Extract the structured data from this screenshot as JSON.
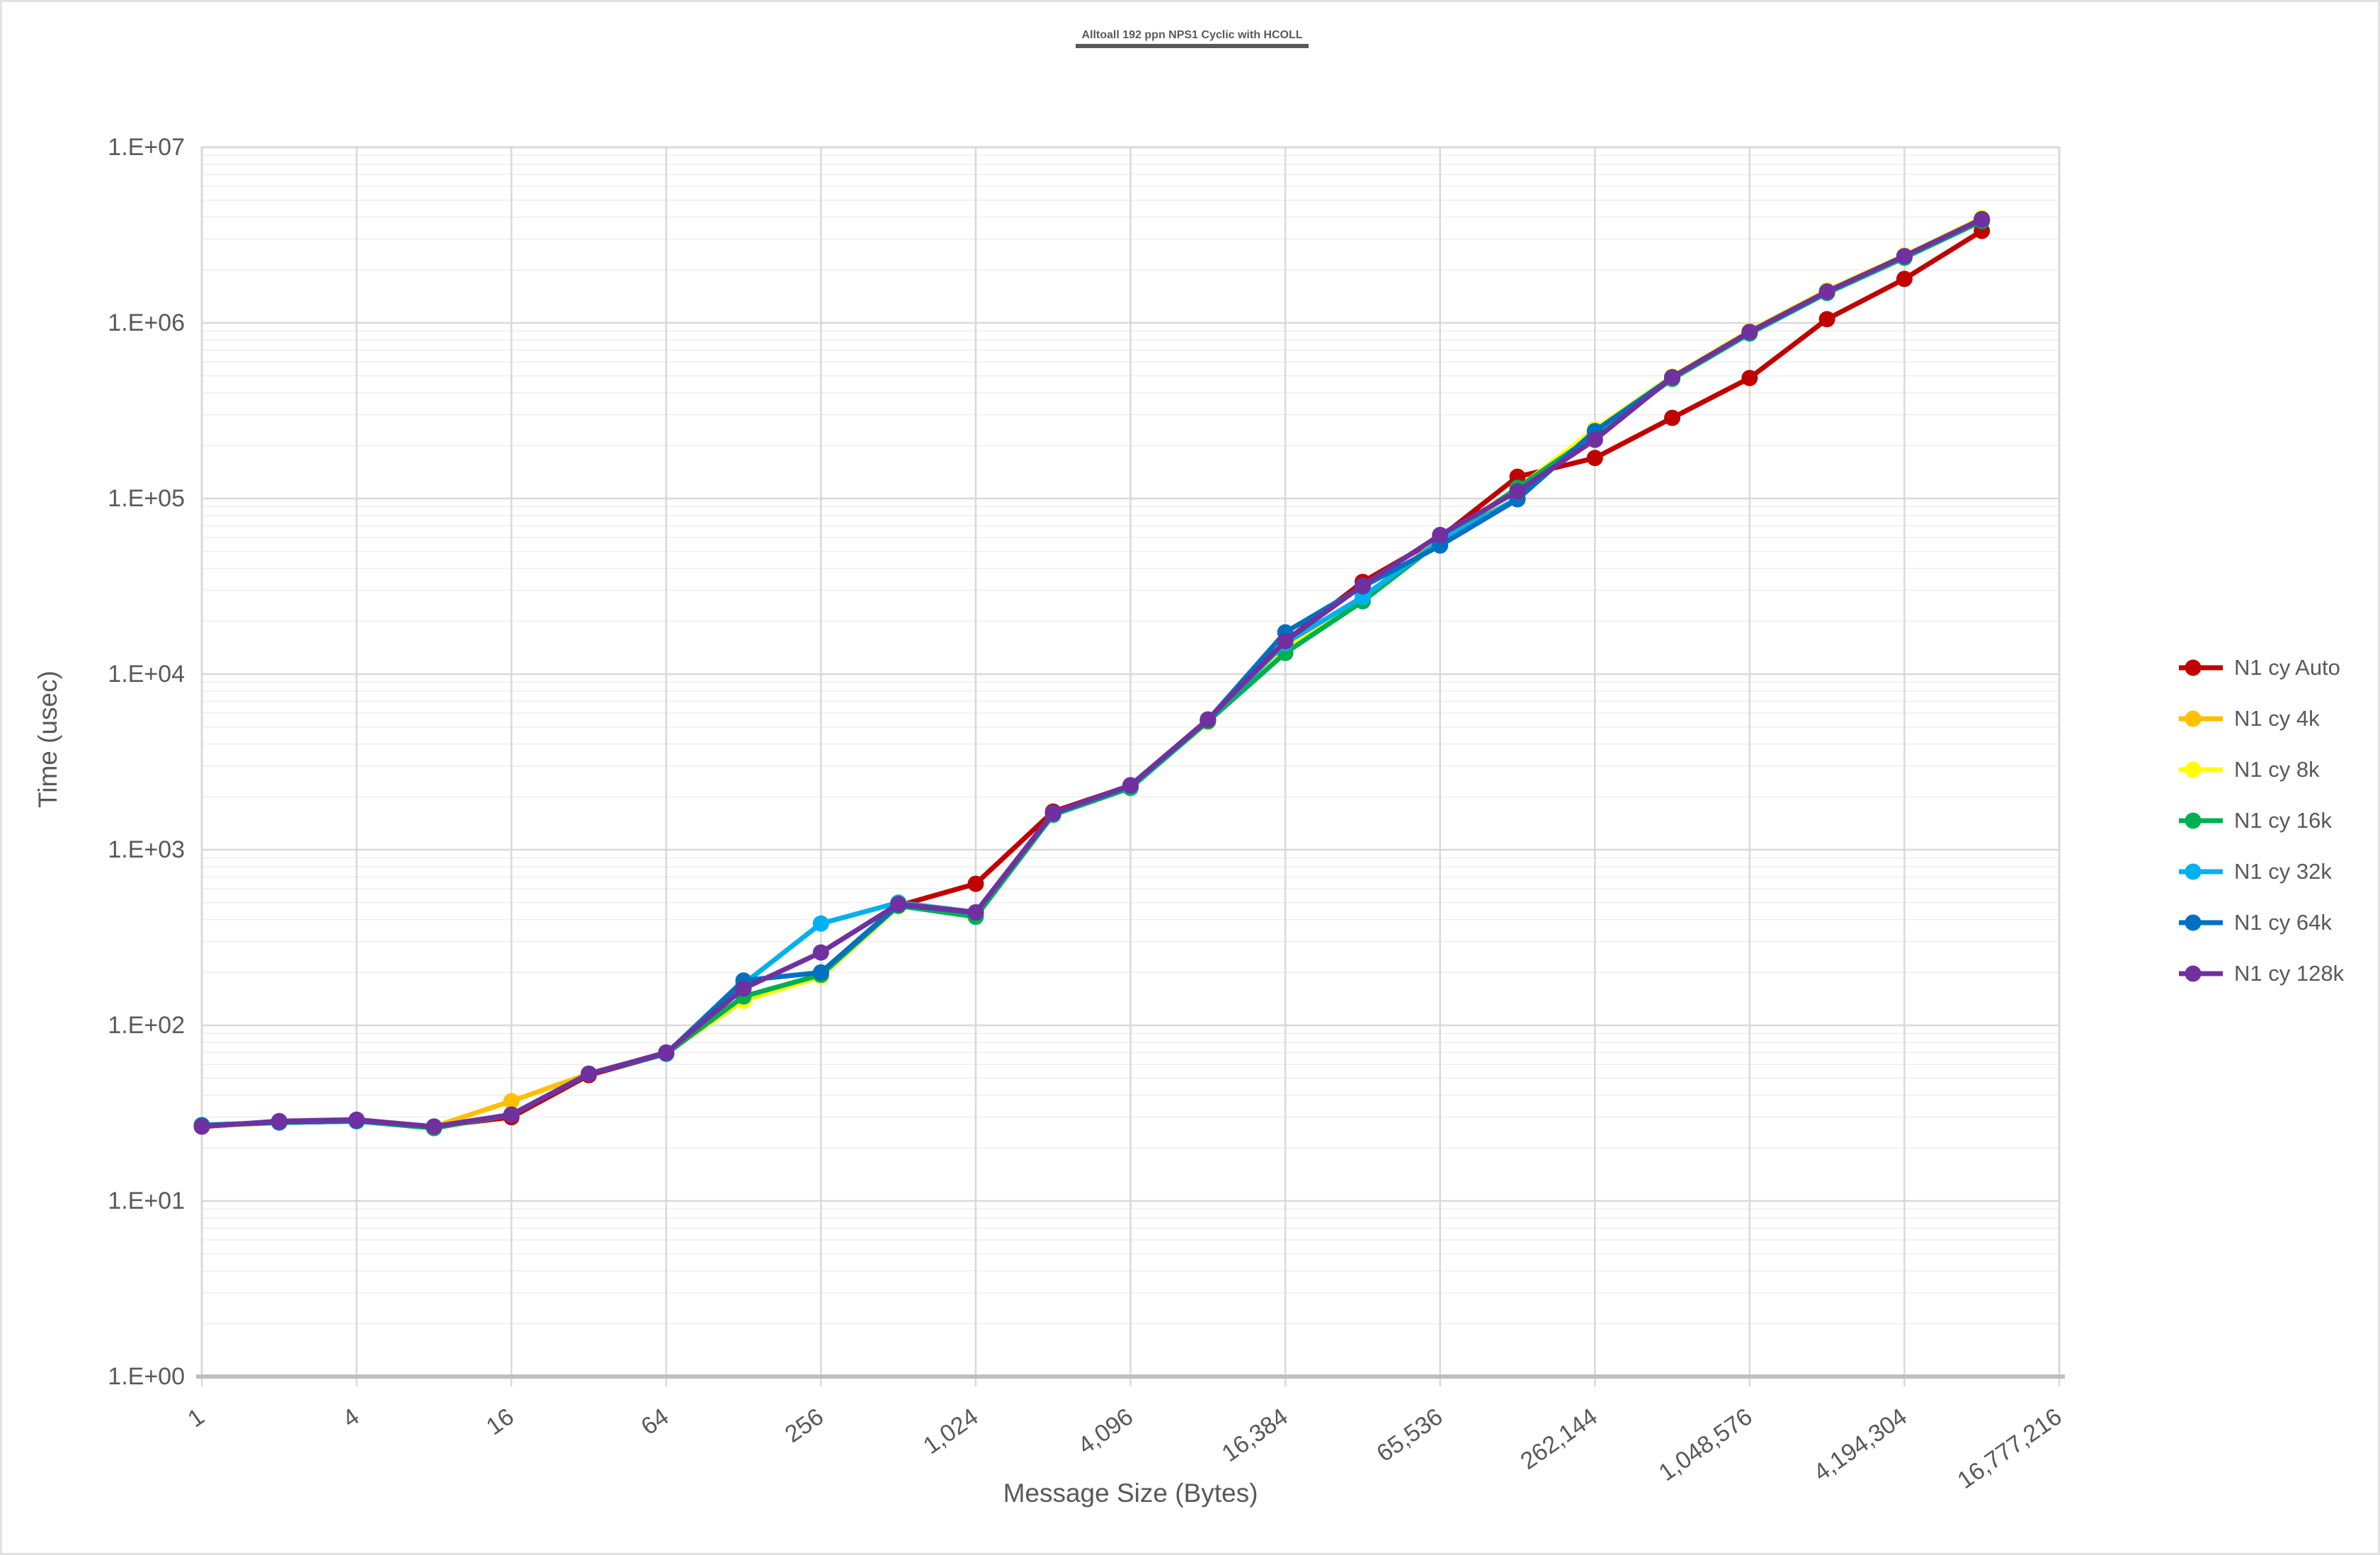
{
  "chart_data": {
    "type": "line",
    "title": "Alltoall 192 ppn NPS1 Cyclic with HCOLL",
    "xlabel": "Message Size (Bytes)",
    "ylabel": "Time (usec)",
    "x_scale": "log2",
    "y_scale": "log10",
    "xlim": [
      1,
      16777216
    ],
    "ylim": [
      1,
      10000000
    ],
    "grid": true,
    "legend_position": "right",
    "y_tick_labels": [
      "1.E+00",
      "1.E+01",
      "1.E+02",
      "1.E+03",
      "1.E+04",
      "1.E+05",
      "1.E+06",
      "1.E+07"
    ],
    "x_tick_labels": [
      "1",
      "4",
      "16",
      "64",
      "256",
      "1,024",
      "4,096",
      "16,384",
      "65,536",
      "262,144",
      "1,048,576",
      "4,194,304",
      "16,777,216"
    ],
    "sizes": [
      1,
      2,
      4,
      8,
      16,
      32,
      64,
      128,
      256,
      512,
      1024,
      2048,
      4096,
      8192,
      16384,
      32768,
      65536,
      131072,
      262144,
      524288,
      1048576,
      2097152,
      4194304,
      8388608
    ],
    "series": [
      {
        "name": "N1 cy Auto",
        "color": "#C00000",
        "values": [
          26.5,
          28,
          28.5,
          26.5,
          30,
          52,
          69,
          145,
          192,
          480,
          640,
          1650,
          2320,
          5400,
          15400,
          33500,
          60000,
          133000,
          170000,
          288000,
          485000,
          1050000,
          1780000,
          3340000
        ]
      },
      {
        "name": "N1 cy 4k",
        "color": "#FFC000",
        "values": [
          26.5,
          28,
          28.5,
          26.5,
          37,
          53,
          70,
          145,
          192,
          478,
          438,
          1600,
          2280,
          5450,
          14500,
          27000,
          58000,
          112000,
          245000,
          488000,
          880000,
          1500000,
          2380000,
          3900000
        ]
      },
      {
        "name": "N1 cy 8k",
        "color": "#FFFF00",
        "values": [
          26.5,
          28,
          28.5,
          26,
          31,
          53,
          70,
          138,
          190,
          475,
          435,
          1590,
          2270,
          5350,
          14000,
          26800,
          58500,
          114000,
          248000,
          495000,
          900000,
          1530000,
          2420000,
          3950000
        ]
      },
      {
        "name": "N1 cy 16k",
        "color": "#00B050",
        "values": [
          26.8,
          28,
          28.5,
          26,
          31,
          53,
          69,
          146,
          194,
          480,
          415,
          1580,
          2250,
          5380,
          13200,
          26000,
          57000,
          115000,
          230000,
          480000,
          870000,
          1480000,
          2350000,
          3800000
        ]
      },
      {
        "name": "N1 cy 32k",
        "color": "#00B0F0",
        "values": [
          27,
          28,
          28.5,
          26.5,
          31,
          53,
          69,
          172,
          380,
          500,
          440,
          1620,
          2300,
          5500,
          15000,
          27500,
          57500,
          100000,
          240000,
          490000,
          885000,
          1500000,
          2390000,
          3880000
        ]
      },
      {
        "name": "N1 cy 64k",
        "color": "#0070C0",
        "values": [
          27,
          28,
          28.5,
          26.5,
          31,
          53,
          69,
          180,
          200,
          485,
          438,
          1610,
          2310,
          5480,
          17300,
          31500,
          54000,
          99000,
          242000,
          490000,
          885000,
          1505000,
          2400000,
          3870000
        ]
      },
      {
        "name": "N1 cy 128k",
        "color": "#7030A0",
        "values": [
          26.5,
          28.5,
          29,
          26.5,
          31,
          53,
          70,
          162,
          260,
          490,
          440,
          1620,
          2330,
          5520,
          15400,
          32000,
          62000,
          110000,
          216000,
          490000,
          890000,
          1510000,
          2400000,
          3900000
        ]
      }
    ],
    "colors": {
      "text": "#595959",
      "grid_major": "#D9D9D9",
      "grid_minor": "#EFEFEF",
      "axis_line": "#BFBFBF",
      "plot_border": "#D9D9D9",
      "background": "#FFFFFF"
    }
  }
}
